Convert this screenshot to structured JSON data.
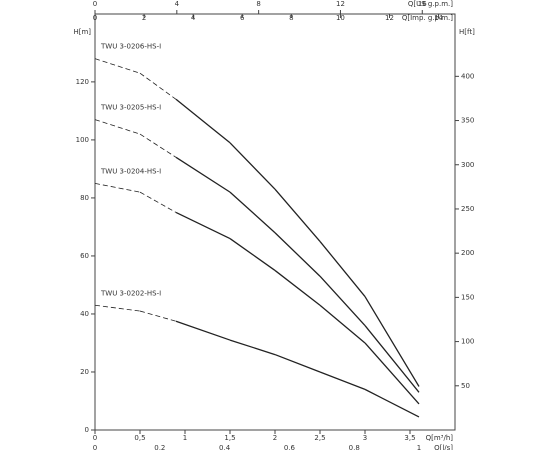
{
  "chart_data": {
    "type": "line",
    "axes": [
      {
        "position": "bottom",
        "label": "Q[m³/h]",
        "lim": [
          0,
          4
        ],
        "ticks": [
          0,
          {
            "value": 0.5,
            "label": "0,5"
          },
          1,
          {
            "value": 1.5,
            "label": "1,5"
          },
          2,
          {
            "value": 2.5,
            "label": "2,5"
          },
          3,
          {
            "value": 3.5,
            "label": "3,5"
          }
        ]
      },
      {
        "position": "bottom2",
        "label": "Q[l/s]",
        "lim": [
          0,
          1.111
        ],
        "ticks": [
          0,
          {
            "value": 0.2,
            "label": "0,2"
          },
          {
            "value": 0.4,
            "label": "0,4"
          },
          {
            "value": 0.6,
            "label": "0,6"
          },
          {
            "value": 0.8,
            "label": "0,8"
          },
          1
        ]
      },
      {
        "position": "top",
        "label": "Q[US g.p.m.]",
        "lim": [
          0,
          17.6
        ],
        "ticks": [
          0,
          4,
          8,
          12,
          16
        ]
      },
      {
        "position": "top2",
        "label": "Q[Imp. g.p.m.]",
        "lim": [
          0,
          14.67
        ],
        "ticks": [
          0,
          2,
          4,
          6,
          8,
          10,
          12,
          14
        ]
      },
      {
        "position": "left",
        "label": "H[m]",
        "lim": [
          0,
          143.4
        ],
        "ticks": [
          0,
          20,
          40,
          60,
          80,
          100,
          120
        ]
      },
      {
        "position": "right",
        "label": "H[ft]",
        "lim": [
          0,
          470.5
        ],
        "ticks": [
          50,
          100,
          150,
          200,
          250,
          300,
          350,
          400
        ]
      }
    ],
    "x": [
      0,
      0.5,
      0.9,
      1.5,
      2,
      2.5,
      3,
      3.6
    ],
    "segment_styles": [
      "dashed",
      "dashed",
      "solid",
      "solid",
      "solid",
      "solid",
      "solid"
    ],
    "color": "#222222",
    "series": [
      {
        "name": "TWU 3-0206-HS-I",
        "values": [
          128,
          123,
          114,
          99,
          83,
          65,
          46,
          15
        ]
      },
      {
        "name": "TWU 3-0205-HS-I",
        "values": [
          107,
          102,
          94,
          82,
          68,
          53,
          36,
          13
        ]
      },
      {
        "name": "TWU 3-0204-HS-I",
        "values": [
          85,
          82,
          75,
          66,
          55,
          43,
          30,
          9
        ]
      },
      {
        "name": "TWU 3-0202-HS-I",
        "values": [
          43,
          41,
          37.5,
          31,
          26,
          20,
          14,
          4.5
        ]
      }
    ]
  }
}
